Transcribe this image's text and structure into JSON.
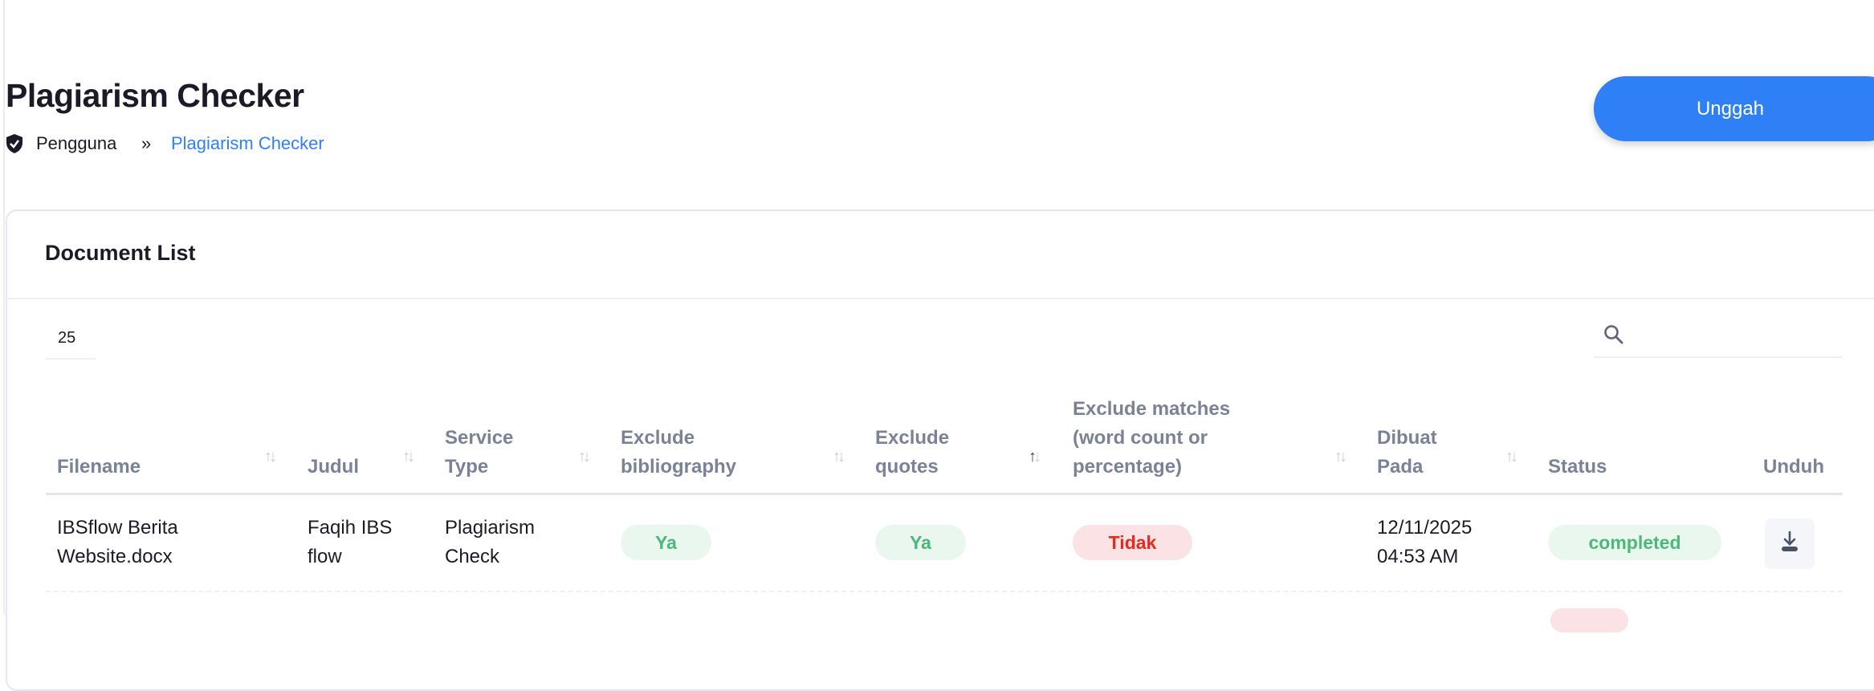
{
  "page": {
    "title": "Plagiarism Checker",
    "upload_button": "Unggah"
  },
  "breadcrumb": {
    "items": [
      "Pengguna",
      "Plagiarism Checker"
    ],
    "separator": "»"
  },
  "card": {
    "title": "Document List",
    "page_size": "25",
    "search_placeholder": ""
  },
  "table": {
    "columns": [
      "Filename",
      "Judul",
      "Service Type",
      "Exclude bibliography",
      "Exclude quotes",
      "Exclude matches (word count or percentage)",
      "Dibuat Pada",
      "Status",
      "Unduh"
    ],
    "sorted_column": "Exclude quotes",
    "sort_direction": "ascending",
    "rows": [
      {
        "filename": "IBSflow Berita Website.docx",
        "judul": "Faqih IBS flow",
        "service_type": "Plagiarism Check",
        "exclude_bibliography": "Ya",
        "exclude_quotes": "Ya",
        "exclude_matches": "Tidak",
        "dibuat_pada": "12/11/2025 04:53 AM",
        "status": "completed",
        "unduh": "download-icon"
      }
    ]
  },
  "colors": {
    "accent": "#2f7ff6",
    "yes_text": "#4cb87a",
    "yes_bg": "#eaf7ef",
    "no_text": "#e8291f",
    "no_bg": "#fbe2e4"
  }
}
